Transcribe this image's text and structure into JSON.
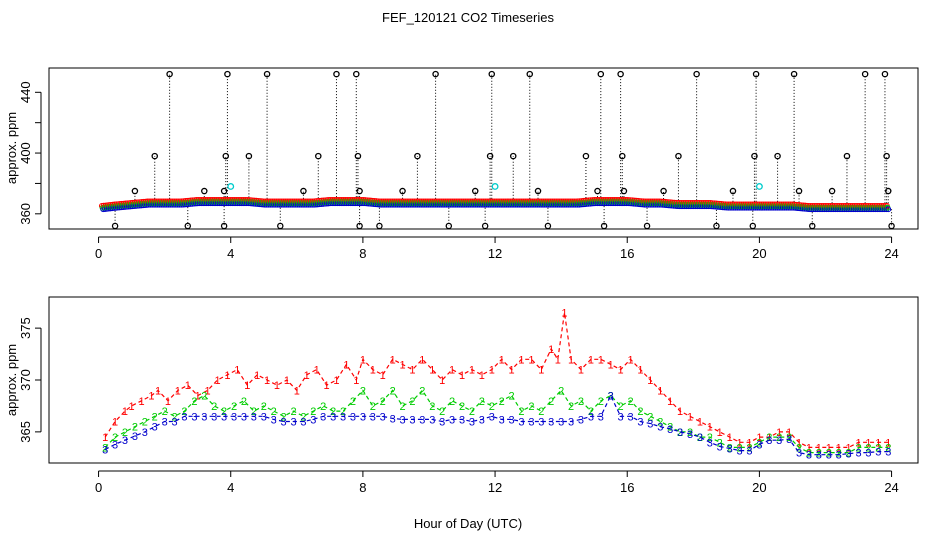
{
  "figure": {
    "title": "FEF_120121  CO2 Timeseries",
    "xlabel": "Hour of Day (UTC)"
  },
  "colors": {
    "series1": "#ff0000",
    "series2": "#00cc00",
    "series3": "#0000cc",
    "raw_black": "#000000",
    "raw_cyan": "#00cccc"
  },
  "chart_data": [
    {
      "type": "scatter",
      "ylabel": "approx. ppm",
      "xlim": [
        -1.5,
        24.8
      ],
      "ylim": [
        350,
        456
      ],
      "xticks": [
        0,
        4,
        8,
        12,
        16,
        20,
        24
      ],
      "xtick_labels": [
        "0",
        "4",
        "8",
        "12",
        "16",
        "20",
        "24"
      ],
      "yticks": [
        360,
        380,
        400,
        420,
        440
      ],
      "ytick_labels": [
        "360",
        "",
        "400",
        "",
        "440"
      ],
      "grid": false,
      "baseline": {
        "x": [
          0.1,
          0.5,
          1.0,
          1.5,
          2.0,
          2.5,
          3.0,
          3.5,
          4.0,
          4.5,
          5.0,
          5.5,
          6.0,
          6.5,
          7.0,
          7.5,
          8.0,
          8.5,
          9.0,
          9.5,
          10.0,
          10.5,
          11.0,
          11.5,
          12.0,
          12.5,
          13.0,
          13.5,
          14.0,
          14.5,
          15.0,
          15.5,
          16.0,
          16.5,
          17.0,
          17.5,
          18.0,
          18.5,
          19.0,
          19.5,
          20.0,
          20.5,
          21.0,
          21.5,
          22.0,
          22.5,
          23.0,
          23.5,
          23.9
        ],
        "y": [
          363,
          364,
          365,
          366,
          366,
          366,
          367,
          367,
          367,
          367,
          366,
          366,
          366,
          366,
          367,
          367,
          367,
          366,
          366,
          366,
          366,
          366,
          366,
          366,
          366,
          366,
          366,
          366,
          366,
          366,
          367,
          367,
          367,
          366,
          366,
          365,
          365,
          365,
          364,
          364,
          364,
          364,
          364,
          363,
          363,
          363,
          363,
          363,
          363
        ]
      },
      "spikes_high": {
        "x": [
          2.15,
          3.9,
          5.1,
          7.2,
          7.8,
          10.2,
          11.9,
          13.05,
          15.2,
          15.8,
          18.1,
          19.9,
          21.05,
          23.2,
          23.8
        ],
        "y": [
          452,
          452,
          452,
          452,
          452,
          452,
          452,
          452,
          452,
          452,
          452,
          452,
          452,
          452,
          452
        ]
      },
      "spikes_mid": {
        "x": [
          1.7,
          3.85,
          4.55,
          6.65,
          7.85,
          9.65,
          11.85,
          12.55,
          14.75,
          15.85,
          17.55,
          19.85,
          20.55,
          22.65,
          23.85
        ],
        "y": [
          398,
          398,
          398,
          398,
          398,
          398,
          398,
          398,
          398,
          398,
          398,
          398,
          398,
          398,
          398
        ]
      },
      "spikes_low": {
        "x": [
          1.1,
          3.2,
          3.8,
          6.2,
          7.9,
          9.2,
          11.4,
          13.3,
          15.1,
          15.9,
          17.1,
          19.2,
          21.2,
          22.2,
          23.9
        ],
        "y": [
          375,
          375,
          375,
          375,
          375,
          375,
          375,
          375,
          375,
          375,
          375,
          375,
          375,
          375,
          375
        ]
      },
      "dips": {
        "x": [
          0.5,
          2.7,
          3.8,
          5.5,
          7.9,
          8.5,
          10.6,
          11.7,
          13.6,
          15.3,
          16.6,
          18.7,
          19.8,
          21.6,
          24.0
        ],
        "y": [
          352,
          352,
          352,
          352,
          352,
          352,
          352,
          352,
          352,
          352,
          352,
          352,
          352,
          352,
          352
        ]
      },
      "cyan_points": {
        "x": [
          4.0,
          12.0,
          20.0
        ],
        "y": [
          378,
          378,
          378
        ]
      }
    },
    {
      "type": "line",
      "ylabel": "approx. ppm",
      "xlim": [
        -1.5,
        24.8
      ],
      "ylim": [
        362,
        378
      ],
      "xticks": [
        0,
        4,
        8,
        12,
        16,
        20,
        24
      ],
      "xtick_labels": [
        "0",
        "4",
        "8",
        "12",
        "16",
        "20",
        "24"
      ],
      "yticks": [
        365,
        370,
        375
      ],
      "ytick_labels": [
        "365",
        "370",
        "375"
      ],
      "grid": false,
      "series": [
        {
          "marker": "1",
          "x": [
            0.2,
            0.5,
            0.8,
            1.0,
            1.3,
            1.6,
            1.8,
            2.1,
            2.4,
            2.7,
            3.0,
            3.3,
            3.6,
            3.9,
            4.2,
            4.5,
            4.8,
            5.1,
            5.4,
            5.7,
            6.0,
            6.3,
            6.6,
            6.9,
            7.2,
            7.5,
            7.8,
            8.0,
            8.3,
            8.6,
            8.9,
            9.2,
            9.5,
            9.8,
            10.1,
            10.4,
            10.7,
            11.0,
            11.3,
            11.6,
            11.9,
            12.2,
            12.5,
            12.8,
            13.1,
            13.4,
            13.7,
            13.9,
            14.1,
            14.3,
            14.6,
            14.9,
            15.2,
            15.5,
            15.8,
            16.1,
            16.4,
            16.7,
            17.0,
            17.3,
            17.6,
            17.9,
            18.2,
            18.5,
            18.8,
            19.1,
            19.4,
            19.7,
            20.0,
            20.3,
            20.6,
            20.9,
            21.2,
            21.5,
            21.8,
            22.1,
            22.4,
            22.7,
            23.0,
            23.3,
            23.6,
            23.9
          ],
          "y": [
            364.5,
            366,
            367,
            367.5,
            368,
            368.5,
            369,
            368,
            369,
            369.5,
            368.5,
            369,
            370,
            370.5,
            371,
            369.5,
            370.5,
            370,
            369.5,
            370,
            369,
            370.5,
            371,
            369.5,
            370,
            371.5,
            370,
            372,
            371,
            370.5,
            372,
            371.5,
            371,
            372,
            371,
            370,
            371,
            370.5,
            371,
            370.5,
            371,
            372,
            371,
            372,
            372,
            371,
            373,
            372,
            376.5,
            372,
            371,
            372,
            372,
            371.5,
            371,
            372,
            371,
            370,
            369,
            368,
            367,
            366.5,
            366,
            365.5,
            365,
            364.5,
            364,
            364,
            364.5,
            364.5,
            365,
            365,
            364,
            363.5,
            363.5,
            363.5,
            363.5,
            363.5,
            364,
            364,
            364,
            364
          ]
        },
        {
          "marker": "2",
          "x": [
            0.2,
            0.5,
            0.8,
            1.1,
            1.4,
            1.7,
            2.0,
            2.3,
            2.6,
            2.9,
            3.2,
            3.5,
            3.8,
            4.1,
            4.4,
            4.7,
            5.0,
            5.3,
            5.6,
            5.9,
            6.2,
            6.5,
            6.8,
            7.1,
            7.4,
            7.7,
            8.0,
            8.3,
            8.6,
            8.9,
            9.2,
            9.5,
            9.8,
            10.1,
            10.4,
            10.7,
            11.0,
            11.3,
            11.6,
            11.9,
            12.2,
            12.5,
            12.8,
            13.1,
            13.4,
            13.7,
            14.0,
            14.3,
            14.6,
            14.9,
            15.2,
            15.5,
            15.8,
            16.1,
            16.4,
            16.7,
            17.0,
            17.3,
            17.6,
            17.9,
            18.2,
            18.5,
            18.8,
            19.1,
            19.4,
            19.7,
            20.0,
            20.3,
            20.6,
            20.9,
            21.2,
            21.5,
            21.8,
            22.1,
            22.4,
            22.7,
            23.0,
            23.3,
            23.6,
            23.9
          ],
          "y": [
            363.5,
            364.5,
            365,
            365.5,
            366,
            366.5,
            367,
            366.5,
            367,
            368,
            368.5,
            367.5,
            367,
            367.5,
            368,
            367,
            367.5,
            367,
            366.5,
            367,
            366.5,
            367,
            367.5,
            367,
            367,
            368,
            369,
            367.5,
            368,
            369,
            367.5,
            368,
            369,
            367.5,
            367,
            368,
            367.5,
            367,
            368,
            367.5,
            368,
            368.5,
            367,
            367.5,
            367,
            368,
            369,
            367.5,
            368,
            367,
            368,
            368.5,
            367.5,
            368,
            367,
            366.5,
            366,
            365.5,
            365,
            365,
            364.5,
            364.5,
            364,
            363.5,
            363.5,
            363.5,
            364,
            364.5,
            364.5,
            364.5,
            363.5,
            363,
            363,
            363,
            363,
            363,
            363.5,
            363.5,
            363.5,
            363.5
          ]
        },
        {
          "marker": "3",
          "x": [
            0.2,
            0.5,
            0.8,
            1.1,
            1.4,
            1.7,
            2.0,
            2.3,
            2.6,
            2.9,
            3.2,
            3.5,
            3.8,
            4.1,
            4.4,
            4.7,
            5.0,
            5.3,
            5.6,
            5.9,
            6.2,
            6.5,
            6.8,
            7.1,
            7.4,
            7.7,
            8.0,
            8.3,
            8.6,
            8.9,
            9.2,
            9.5,
            9.8,
            10.1,
            10.4,
            10.7,
            11.0,
            11.3,
            11.6,
            11.9,
            12.2,
            12.5,
            12.8,
            13.1,
            13.4,
            13.7,
            14.0,
            14.3,
            14.6,
            14.9,
            15.2,
            15.5,
            15.8,
            16.1,
            16.4,
            16.7,
            17.0,
            17.3,
            17.6,
            17.9,
            18.2,
            18.5,
            18.8,
            19.1,
            19.4,
            19.7,
            20.0,
            20.3,
            20.6,
            20.9,
            21.2,
            21.5,
            21.8,
            22.1,
            22.4,
            22.7,
            23.0,
            23.3,
            23.6,
            23.9
          ],
          "y": [
            363.3,
            363.8,
            364.2,
            364.6,
            365,
            365.5,
            366,
            366,
            366.5,
            366.5,
            366.5,
            366.5,
            366.5,
            366.5,
            366.5,
            366.5,
            366.5,
            366.2,
            366,
            366,
            366,
            366.2,
            366.5,
            366.5,
            366.5,
            366.5,
            366.5,
            366.5,
            366.5,
            366.3,
            366.2,
            366.2,
            366.2,
            366.2,
            366,
            366.2,
            366.2,
            366,
            366.2,
            366.5,
            366.2,
            366.2,
            366,
            366,
            366,
            366,
            366,
            366,
            366.2,
            366.5,
            366.5,
            368.5,
            366.5,
            366.5,
            366,
            365.8,
            365.5,
            365.3,
            365,
            364.8,
            364.5,
            364,
            363.6,
            363.4,
            363.2,
            363.2,
            363.8,
            364.2,
            364.2,
            364.3,
            363,
            362.8,
            362.8,
            362.8,
            362.8,
            362.9,
            363,
            363,
            363.1,
            363.1
          ]
        }
      ]
    }
  ]
}
